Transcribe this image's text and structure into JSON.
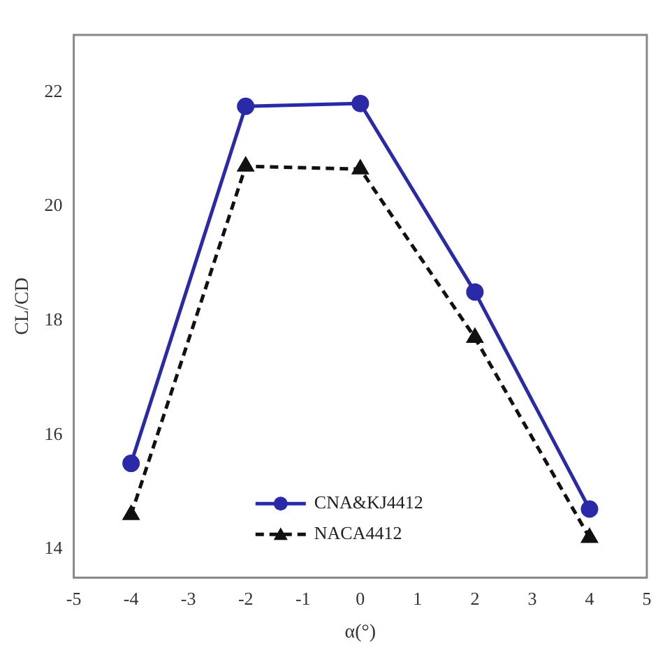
{
  "chart_data": {
    "type": "line",
    "xlabel": "α(°)",
    "ylabel": "CL/CD",
    "x": [
      -4,
      -2,
      0,
      2,
      4
    ],
    "series": [
      {
        "name": "CNA&KJ4412",
        "color": "#2a2aa8",
        "values": [
          15.5,
          21.75,
          21.8,
          18.5,
          14.7
        ],
        "marker": "circle",
        "line_style": "solid"
      },
      {
        "name": "NACA4412",
        "color": "#111111",
        "values": [
          14.6,
          20.7,
          20.65,
          17.7,
          14.2
        ],
        "marker": "triangle",
        "line_style": "dashed"
      }
    ],
    "xlim": [
      -5,
      5
    ],
    "xticks": [
      -5,
      -4,
      -3,
      -2,
      -1,
      0,
      1,
      2,
      3,
      4,
      5
    ],
    "ylim": [
      13.5,
      23
    ],
    "yticks": [
      14,
      16,
      18,
      20,
      22
    ],
    "grid": false,
    "legend": "bottom"
  }
}
